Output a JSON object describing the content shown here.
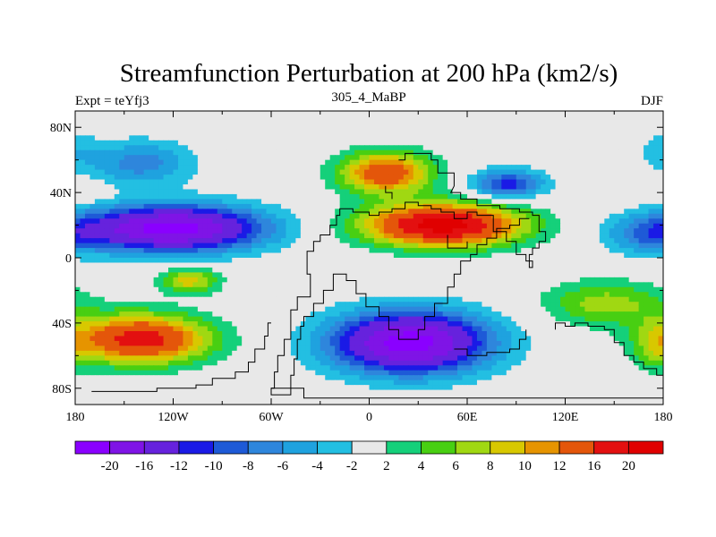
{
  "chart_data": {
    "type": "heatmap",
    "subtype": "filled-contour-map",
    "title": "Streamfunction Perturbation at 200 hPa (km2/s)",
    "left_label": "Expt = teYfj3",
    "center_label": "305_4_MaBP",
    "right_label": "DJF",
    "x_ticks": [
      {
        "value": -180,
        "label": "180"
      },
      {
        "value": -120,
        "label": "120W"
      },
      {
        "value": -60,
        "label": "60W"
      },
      {
        "value": 0,
        "label": "0"
      },
      {
        "value": 60,
        "label": "60E"
      },
      {
        "value": 120,
        "label": "120E"
      },
      {
        "value": 180,
        "label": "180"
      }
    ],
    "y_ticks": [
      {
        "value": 80,
        "label": "80N"
      },
      {
        "value": 40,
        "label": "40N"
      },
      {
        "value": 0,
        "label": "0"
      },
      {
        "value": -40,
        "label": "40S"
      },
      {
        "value": -80,
        "label": "80S"
      }
    ],
    "xlim": [
      -180,
      180
    ],
    "ylim": [
      -90,
      90
    ],
    "levels": [
      -20,
      -16,
      -12,
      -10,
      -8,
      -6,
      -4,
      -2,
      2,
      4,
      6,
      8,
      10,
      12,
      16,
      20
    ],
    "level_labels": [
      "-20",
      "-16",
      "-12",
      "-10",
      "-8",
      "-6",
      "-4",
      "-2",
      "2",
      "4",
      "6",
      "8",
      "10",
      "12",
      "16",
      "20"
    ],
    "colors": [
      "#8a00ff",
      "#7f14e6",
      "#6622dd",
      "#1a1ae6",
      "#1e5ad7",
      "#2e86dc",
      "#1fa2df",
      "#23bfe2",
      "#e8e8e8",
      "#15d07a",
      "#48cf12",
      "#a0d812",
      "#d8c800",
      "#e69400",
      "#e4560a",
      "#e31010",
      "#e00000"
    ],
    "field_centers": [
      {
        "lon": -140,
        "lat": 58,
        "value": -7,
        "dlon": 32,
        "dlat": 14
      },
      {
        "lon": -120,
        "lat": 18,
        "value": -22,
        "dlon": 55,
        "dlat": 14
      },
      {
        "lon": -140,
        "lat": -50,
        "value": 18,
        "dlon": 42,
        "dlat": 15
      },
      {
        "lon": -110,
        "lat": -14,
        "value": 9,
        "dlon": 18,
        "dlat": 8
      },
      {
        "lon": 10,
        "lat": 52,
        "value": 15,
        "dlon": 28,
        "dlat": 13
      },
      {
        "lon": 45,
        "lat": 20,
        "value": 22,
        "dlon": 48,
        "dlat": 13
      },
      {
        "lon": 85,
        "lat": 45,
        "value": -11,
        "dlon": 22,
        "dlat": 9
      },
      {
        "lon": 25,
        "lat": -52,
        "value": -22,
        "dlon": 48,
        "dlat": 19
      },
      {
        "lon": 145,
        "lat": -28,
        "value": 7,
        "dlon": 38,
        "dlat": 14
      },
      {
        "lon": 172,
        "lat": 14,
        "value": -6,
        "dlon": 28,
        "dlat": 12
      },
      {
        "lon": 180,
        "lat": 66,
        "value": -3,
        "dlon": 15,
        "dlat": 12
      },
      {
        "lon": -175,
        "lat": 40,
        "value": 3,
        "dlon": 15,
        "dlat": 6
      },
      {
        "lon": 175,
        "lat": -55,
        "value": 4,
        "dlon": 14,
        "dlat": 16
      }
    ]
  }
}
